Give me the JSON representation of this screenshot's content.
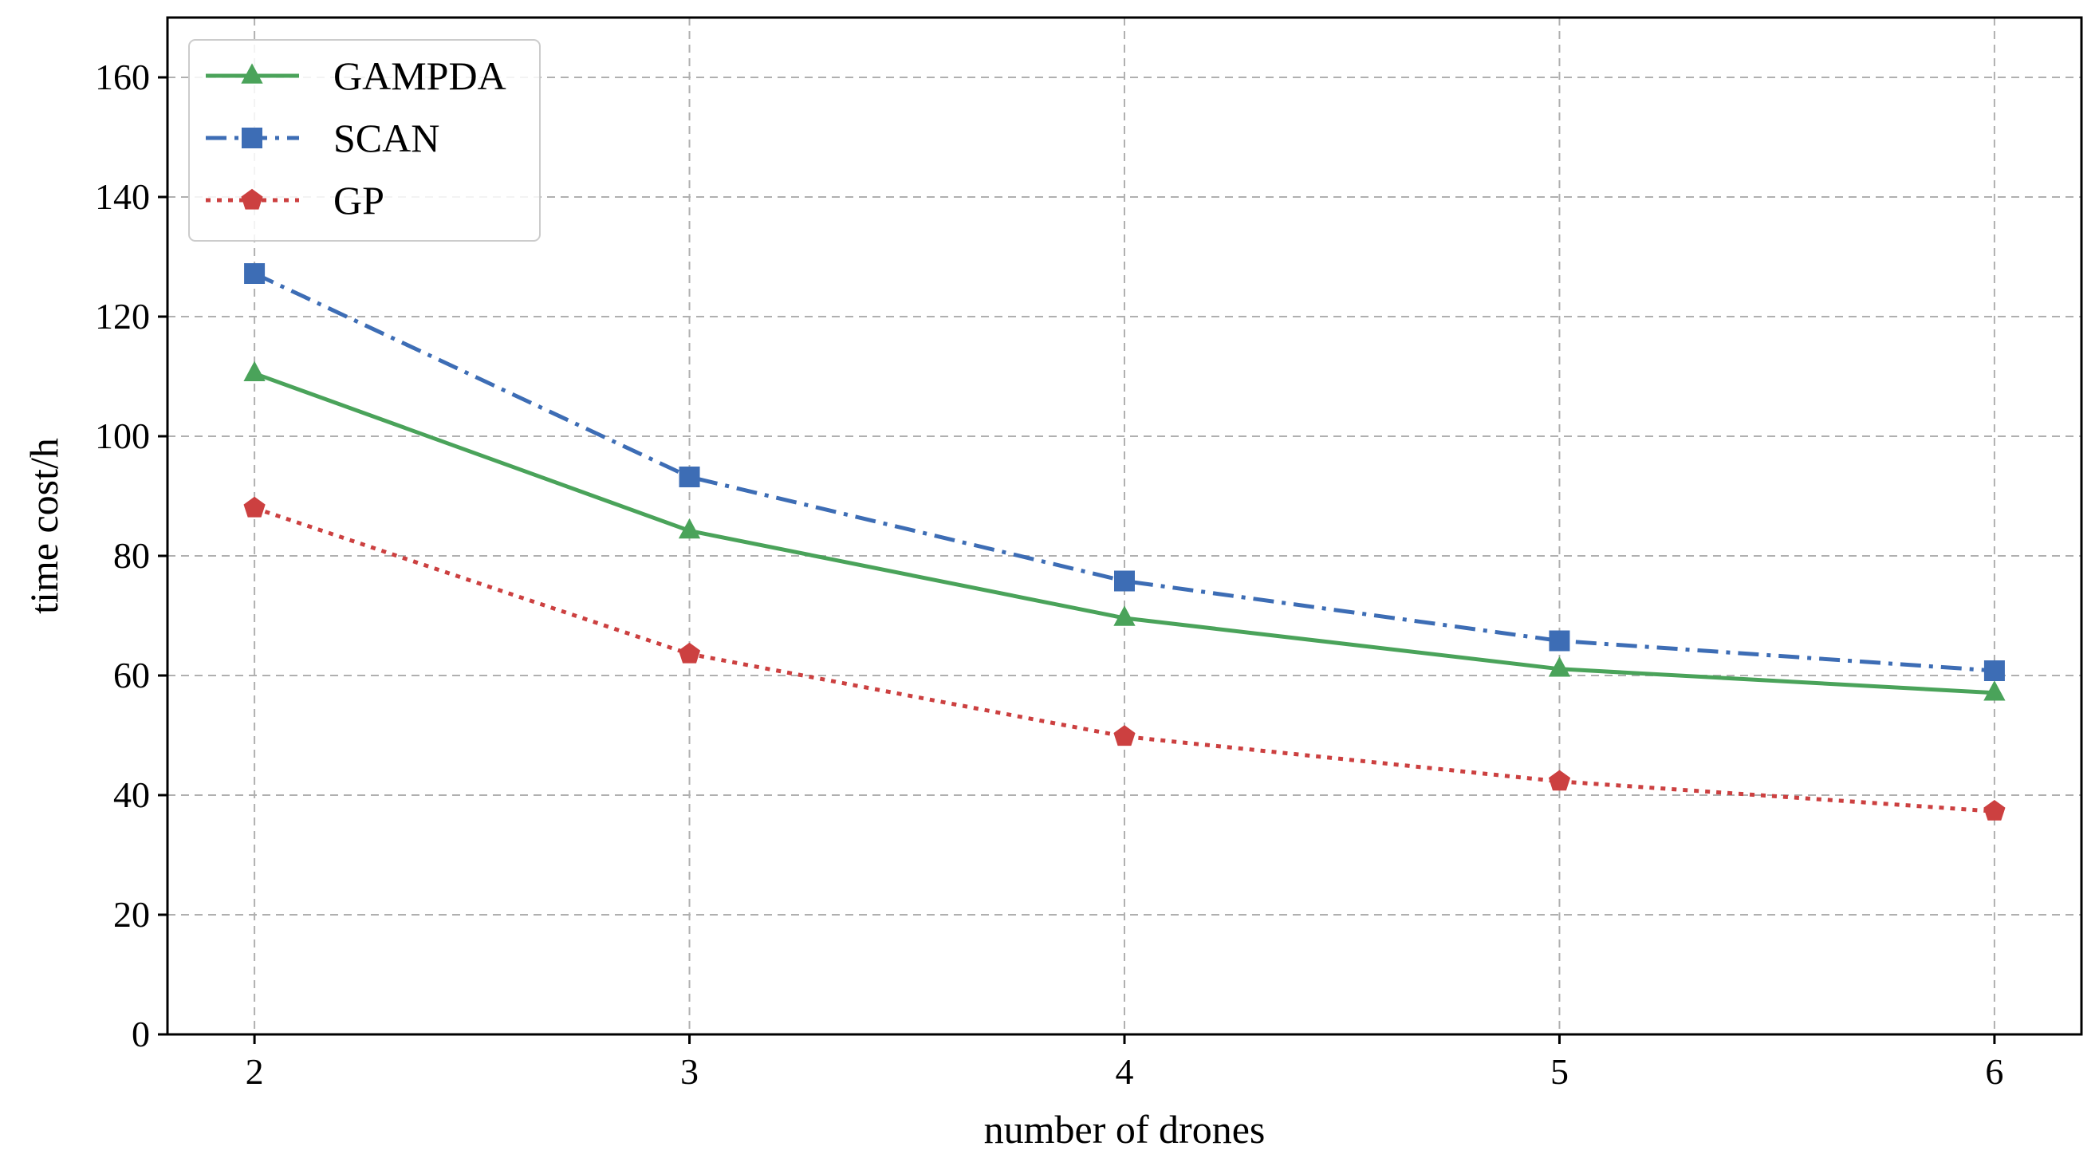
{
  "chart_data": {
    "type": "line",
    "title": "",
    "xlabel": "number of drones",
    "ylabel": "time cost/h",
    "x": [
      2,
      3,
      4,
      5,
      6
    ],
    "xticks": [
      "2",
      "3",
      "4",
      "5",
      "6"
    ],
    "xlim": [
      1.8,
      6.2
    ],
    "yticks": [
      "0",
      "20",
      "40",
      "60",
      "80",
      "100",
      "120",
      "140",
      "160"
    ],
    "ylim": [
      0,
      170
    ],
    "grid": true,
    "legend_position": "top-left",
    "series": [
      {
        "name": "GAMPDA",
        "values": [
          110.5,
          84.2,
          69.6,
          61.1,
          57.1
        ],
        "color": "#4aa35a",
        "line_style": "solid",
        "marker": "triangle"
      },
      {
        "name": "SCAN",
        "values": [
          127.2,
          93.2,
          75.8,
          65.8,
          60.8
        ],
        "color": "#3d6db5",
        "line_style": "dash-dot",
        "marker": "square"
      },
      {
        "name": "GP",
        "values": [
          88.0,
          63.6,
          49.8,
          42.3,
          37.3
        ],
        "color": "#cc4040",
        "line_style": "dotted",
        "marker": "pentagon"
      }
    ]
  }
}
